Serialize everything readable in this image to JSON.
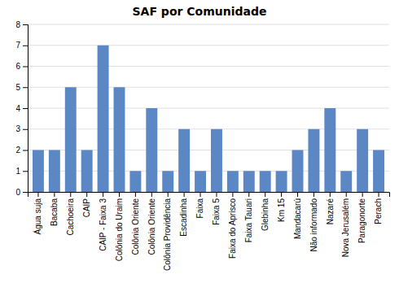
{
  "chart_data": {
    "type": "bar",
    "title": "SAF por Comunidade",
    "categories": [
      "Água suja",
      "Bacaba",
      "Cachoeira",
      "CAIP",
      "CAIP - Faixa 3",
      "Colônia do Uraim",
      "Colônia Oriente",
      "Colônia Oriente",
      "Colônia Providência",
      "Escadinha",
      "Faixa",
      "Faixa 5",
      "Faixa do Aprisco",
      "Faixa Tauari",
      "Glebinha",
      "Km 15",
      "Mandacarú",
      "Não informado",
      "Nazaré",
      "Nova Jerusalém",
      "Paragonorte",
      "Perach"
    ],
    "values": [
      2,
      2,
      5,
      2,
      7,
      5,
      1,
      4,
      1,
      3,
      1,
      3,
      1,
      1,
      1,
      1,
      2,
      3,
      4,
      1,
      3,
      2
    ],
    "color": "#5b87c5",
    "ylim": [
      0,
      8
    ],
    "yticks": [
      0,
      1,
      2,
      3,
      4,
      5,
      6,
      7,
      8
    ],
    "grid": true
  }
}
